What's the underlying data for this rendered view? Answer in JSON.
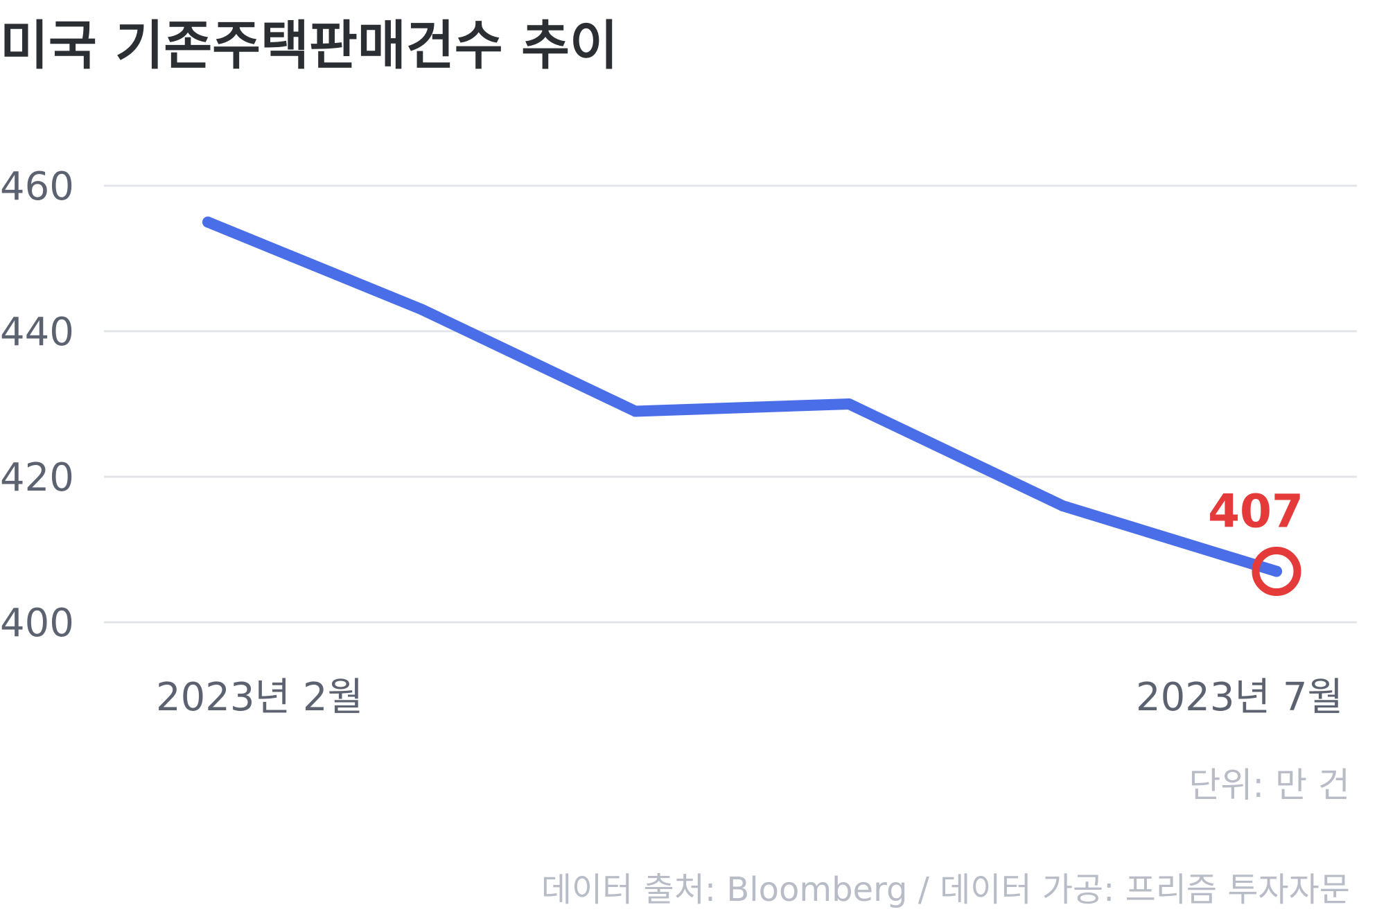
{
  "chart_data": {
    "type": "line",
    "title": "미국 기존주택판매건수 추이",
    "x": [
      "2023-02",
      "2023-03",
      "2023-04",
      "2023-05",
      "2023-06",
      "2023-07"
    ],
    "x_tick_labels": [
      "2023년 2월",
      "2023년 7월"
    ],
    "series": [
      {
        "values": [
          455,
          443,
          429,
          430,
          416,
          407
        ]
      }
    ],
    "ylim": [
      400,
      460
    ],
    "y_ticks": [
      400,
      420,
      440,
      460
    ],
    "y_tick_labels": [
      "400",
      "420",
      "440",
      "460"
    ],
    "grid": "horizontal",
    "annotation": {
      "label": "407",
      "value": 407,
      "point": "last"
    },
    "unit_label": "단위: 만 건",
    "source": "데이터 출처: Bloomberg / 데이터 가공: 프리즘 투자자문",
    "colors": {
      "line": "#4a6ee8",
      "highlight": "#e53a3a",
      "grid": "#e2e4e8"
    }
  }
}
